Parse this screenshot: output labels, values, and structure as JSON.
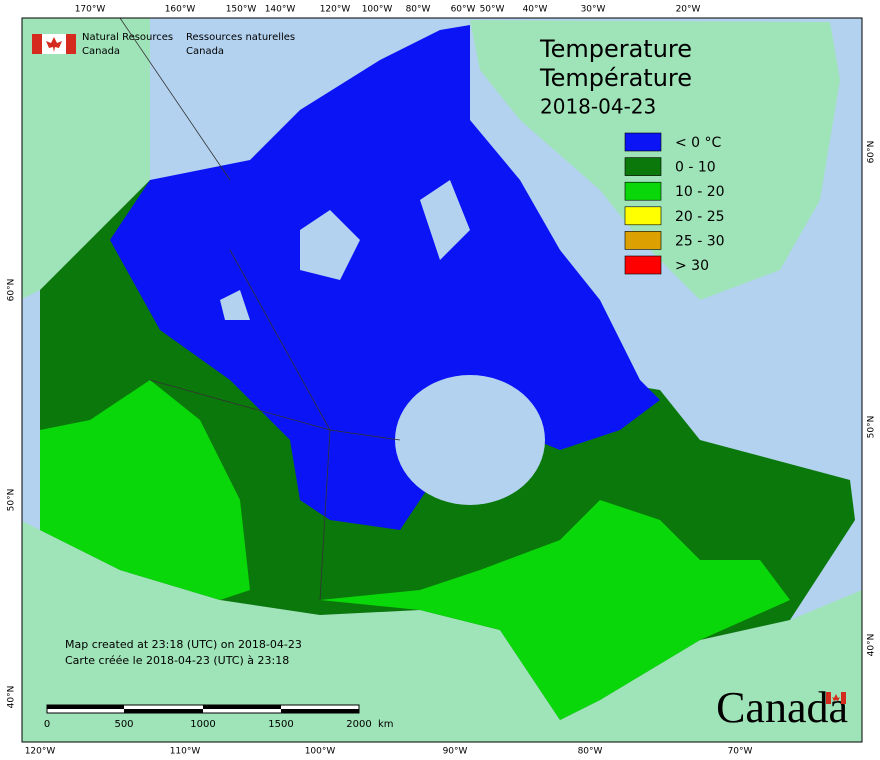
{
  "agency": {
    "en": [
      "Natural Resources",
      "Canada"
    ],
    "fr": [
      "Ressources naturelles",
      "Canada"
    ]
  },
  "title": [
    "Temperature",
    "Température"
  ],
  "date": "2018-04-23",
  "legend": [
    {
      "label": "< 0 °C",
      "color": "#0a14f5"
    },
    {
      "label": "0 - 10",
      "color": "#0a780a"
    },
    {
      "label": "10 - 20",
      "color": "#0ad70a"
    },
    {
      "label": "20 - 25",
      "color": "#ffff00"
    },
    {
      "label": "25 - 30",
      "color": "#dca000"
    },
    {
      "label": "> 30",
      "color": "#ff0000"
    }
  ],
  "credits": [
    "Map created at 23:18 (UTC) on 2018-04-23",
    "Carte créée le 2018-04-23 (UTC) à 23:18"
  ],
  "scale": {
    "ticks": [
      "0",
      "500",
      "1000",
      "1500",
      "2000"
    ],
    "unit": "km"
  },
  "graticule": {
    "top": [
      "170°W",
      "160°W",
      "150°W",
      "140°W",
      "120°W",
      "100°W",
      "80°W",
      "60°W",
      "50°W",
      "40°W",
      "30°W",
      "20°W"
    ],
    "bottom": [
      "120°W",
      "110°W",
      "100°W",
      "90°W",
      "80°W",
      "70°W"
    ],
    "left": [
      "60°N",
      "50°N",
      "40°N"
    ],
    "right": [
      "60°N",
      "50°N",
      "40°N"
    ]
  },
  "wordmark": "Canada"
}
